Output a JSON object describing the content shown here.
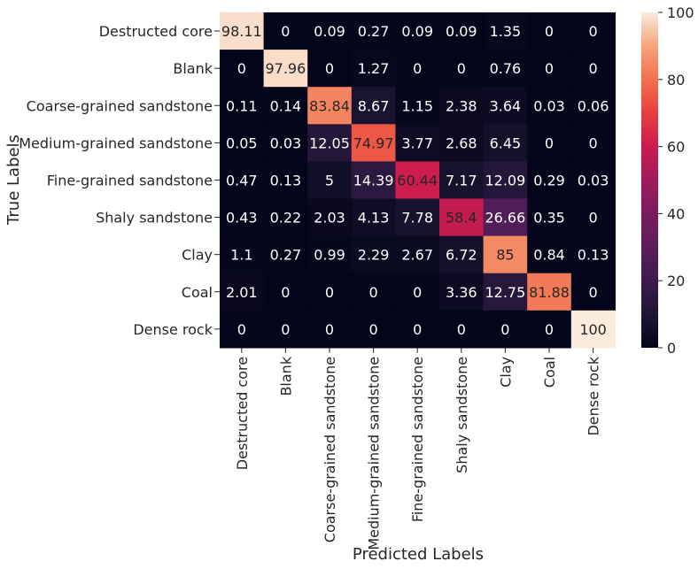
{
  "chart_data": {
    "type": "heatmap",
    "title": "",
    "xlabel": "Predicted Labels",
    "ylabel": "True Labels",
    "x_categories": [
      "Destructed core",
      "Blank",
      "Coarse-grained sandstone",
      "Medium-grained sandstone",
      "Fine-grained sandstone",
      "Shaly sandstone",
      "Clay",
      "Coal",
      "Dense rock"
    ],
    "y_categories": [
      "Destructed core",
      "Blank",
      "Coarse-grained sandstone",
      "Medium-grained sandstone",
      "Fine-grained sandstone",
      "Shaly sandstone",
      "Clay",
      "Coal",
      "Dense rock"
    ],
    "values": [
      [
        98.11,
        0,
        0.09,
        0.27,
        0.09,
        0.09,
        1.35,
        0,
        0
      ],
      [
        0,
        97.96,
        0,
        1.27,
        0,
        0,
        0.76,
        0,
        0
      ],
      [
        0.11,
        0.14,
        83.84,
        8.67,
        1.15,
        2.38,
        3.64,
        0.03,
        0.06
      ],
      [
        0.05,
        0.03,
        12.05,
        74.97,
        3.77,
        2.68,
        6.45,
        0,
        0
      ],
      [
        0.47,
        0.13,
        5,
        14.39,
        60.44,
        7.17,
        12.09,
        0.29,
        0.03
      ],
      [
        0.43,
        0.22,
        2.03,
        4.13,
        7.78,
        58.4,
        26.66,
        0.35,
        0
      ],
      [
        1.1,
        0.27,
        0.99,
        2.29,
        2.67,
        6.72,
        85,
        0.84,
        0.13
      ],
      [
        2.01,
        0,
        0,
        0,
        0,
        3.36,
        12.75,
        81.88,
        0
      ],
      [
        0,
        0,
        0,
        0,
        0,
        0,
        0,
        0,
        100
      ]
    ],
    "colorbar": {
      "range": [
        0,
        100
      ],
      "ticks": [
        0,
        20,
        40,
        60,
        80,
        100
      ],
      "colormap": "rocket"
    }
  }
}
